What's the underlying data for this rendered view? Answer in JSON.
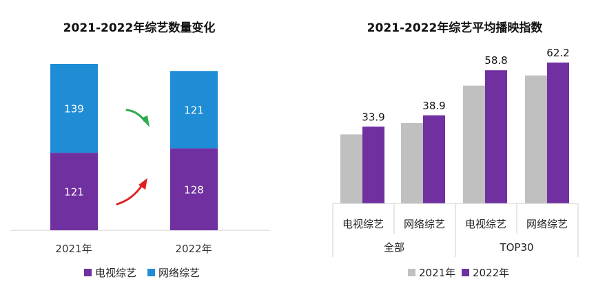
{
  "colors": {
    "tv": "#7030a0",
    "net": "#1f8dd6",
    "y2021": "#c0c0c0",
    "y2022": "#7030a0",
    "down_arrow": "#2eaa4a",
    "up_arrow": "#e02020"
  },
  "chart_data": [
    {
      "type": "bar",
      "stacked": true,
      "title": "2021-2022年综艺数量变化",
      "categories": [
        "2021年",
        "2022年"
      ],
      "series": [
        {
          "name": "电视综艺",
          "values": [
            121,
            128
          ]
        },
        {
          "name": "网络综艺",
          "values": [
            139,
            121
          ]
        }
      ],
      "annotations": [
        {
          "series": "网络综艺",
          "direction": "down"
        },
        {
          "series": "电视综艺",
          "direction": "up"
        }
      ],
      "legend_position": "bottom",
      "ylim": [
        0,
        260
      ],
      "grid": false
    },
    {
      "type": "bar",
      "title": "2021-2022年综艺平均播映指数",
      "groups": [
        {
          "label": "全部",
          "categories": [
            "电视综艺",
            "网络综艺"
          ]
        },
        {
          "label": "TOP30",
          "categories": [
            "电视综艺",
            "网络综艺"
          ]
        }
      ],
      "categories": [
        "电视综艺",
        "网络综艺",
        "电视综艺",
        "网络综艺"
      ],
      "series": [
        {
          "name": "2021年",
          "values": [
            30.5,
            35.5,
            52.0,
            56.5
          ]
        },
        {
          "name": "2022年",
          "values": [
            33.9,
            38.9,
            58.8,
            62.2
          ]
        }
      ],
      "data_labels_series": "2022年",
      "legend_position": "bottom",
      "ylim": [
        0,
        80
      ],
      "grid": false
    }
  ]
}
